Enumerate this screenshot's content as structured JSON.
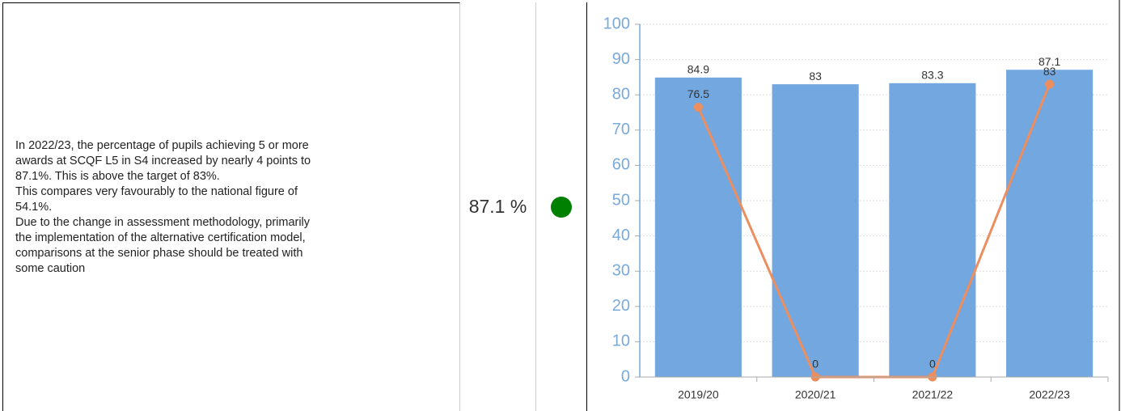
{
  "description": {
    "paragraphs": [
      "In 2022/23, the percentage of pupils achieving 5 or more awards at SCQF L5 in S4 increased by nearly 4 points to 87.1%.  This is above the target of 83%.",
      "This compares very favourably to the national figure of 54.1%.",
      "Due to the change in assessment methodology, primarily the implementation of the alternative certification model, comparisons at the senior phase should be treated with some caution"
    ]
  },
  "value_text": "87.1 %",
  "status_color": "#008000",
  "chart_data": {
    "type": "bar_line",
    "categories": [
      "2019/20",
      "2020/21",
      "2021/22",
      "2022/23"
    ],
    "series": [
      {
        "type": "bar",
        "color": "#73a7e0",
        "values": [
          84.9,
          83,
          83.3,
          87.1
        ]
      },
      {
        "type": "line",
        "color": "#ed8e5e",
        "values": [
          76.5,
          0,
          0,
          83
        ]
      }
    ],
    "ylim": [
      0,
      100
    ],
    "yticks": [
      0,
      10,
      20,
      30,
      40,
      50,
      60,
      70,
      80,
      90,
      100
    ],
    "grid": true
  }
}
